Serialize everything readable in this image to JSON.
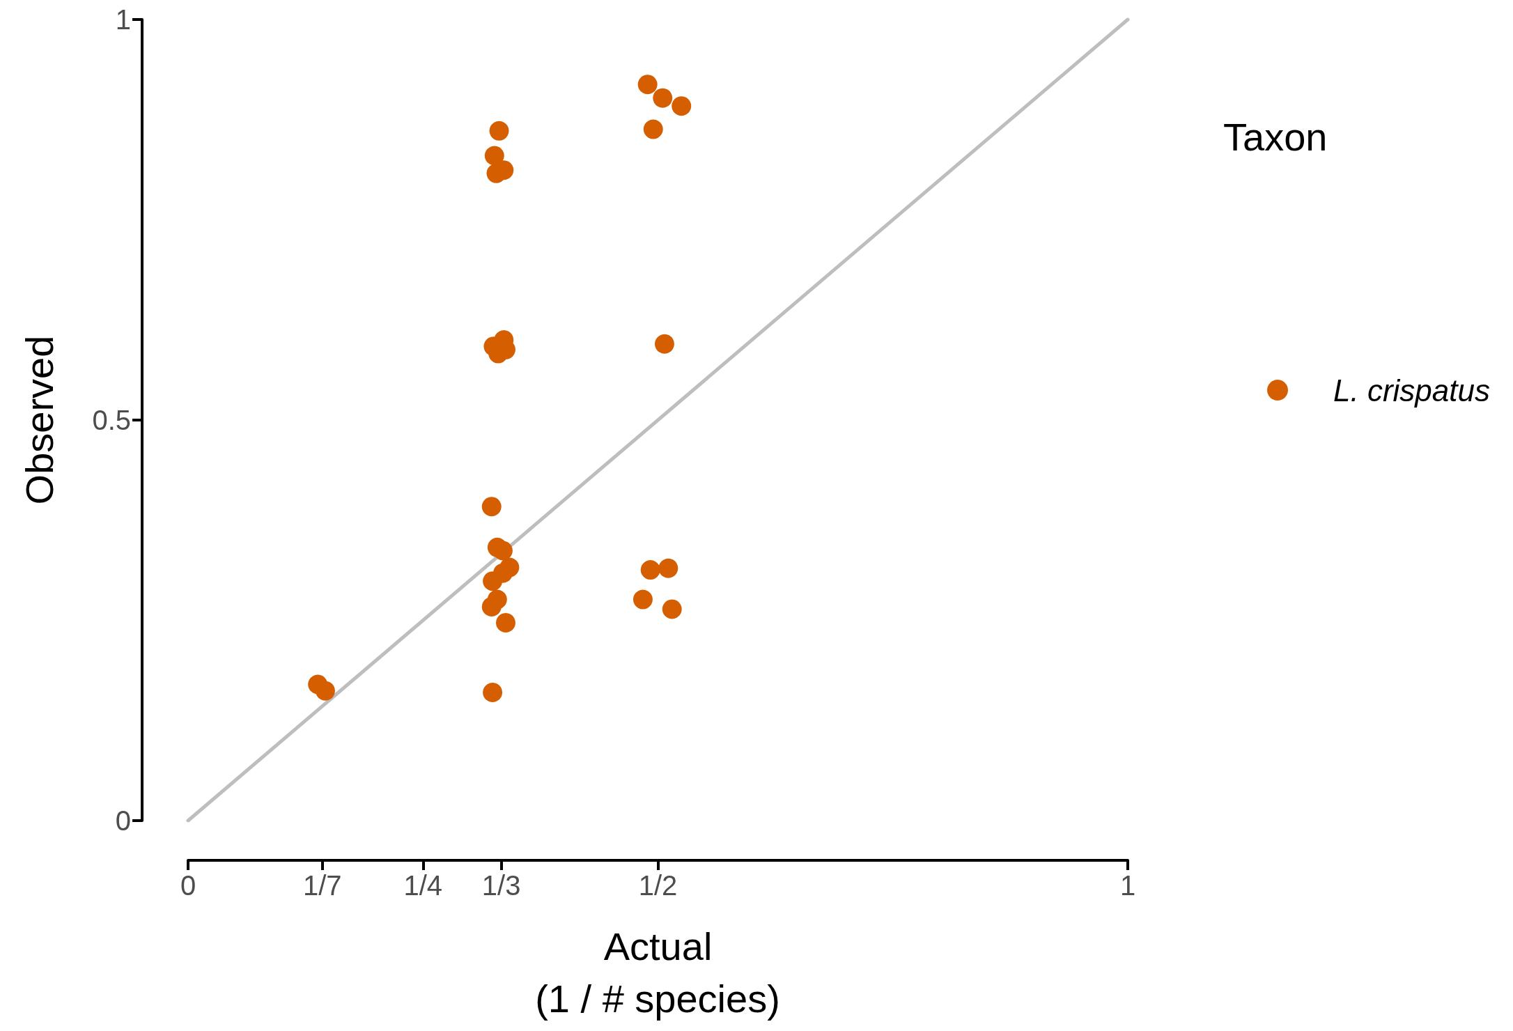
{
  "chart_data": {
    "type": "scatter",
    "xlabel": "Actual",
    "ylabel": "Observed",
    "legend_title": "Taxon",
    "annotations": [
      "(1 / # species)"
    ],
    "xlim": [
      0,
      1
    ],
    "ylim": [
      0,
      1
    ],
    "xticks": [
      0,
      {
        "value": 0.1429,
        "label": "1/7"
      },
      {
        "value": 0.25,
        "label": "1/4"
      },
      {
        "value": 0.3333,
        "label": "1/3"
      },
      {
        "value": 0.5,
        "label": "1/2"
      },
      1
    ],
    "yticks": [
      0,
      0.5,
      1
    ],
    "grid": false,
    "legend": "right",
    "marker": "circle",
    "series": [
      {
        "type": "line",
        "color": "#bebebe",
        "line_style": "solid",
        "marker": "none",
        "x": [
          0,
          1
        ],
        "values": [
          0,
          1
        ]
      },
      {
        "name": "L. crispatus",
        "color": "#d55e00",
        "x": [
          0.138,
          0.146,
          0.331,
          0.326,
          0.328,
          0.336,
          0.336,
          0.325,
          0.33,
          0.338,
          0.323,
          0.329,
          0.335,
          0.342,
          0.335,
          0.324,
          0.329,
          0.323,
          0.338,
          0.324,
          0.489,
          0.505,
          0.525,
          0.495,
          0.507,
          0.492,
          0.511,
          0.484,
          0.515
        ],
        "values": [
          0.17,
          0.162,
          0.861,
          0.83,
          0.808,
          0.812,
          0.6,
          0.592,
          0.583,
          0.588,
          0.392,
          0.341,
          0.337,
          0.316,
          0.309,
          0.299,
          0.276,
          0.267,
          0.247,
          0.16,
          0.919,
          0.902,
          0.892,
          0.863,
          0.595,
          0.313,
          0.315,
          0.276,
          0.264
        ]
      }
    ]
  }
}
